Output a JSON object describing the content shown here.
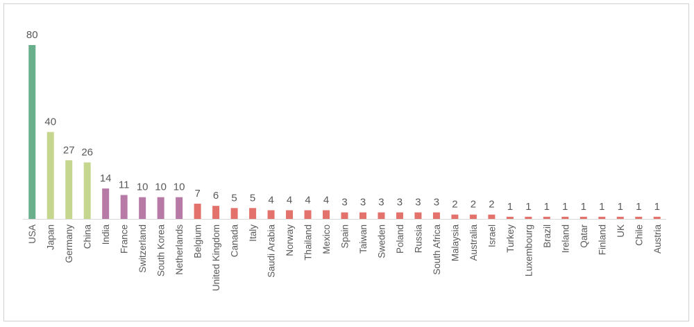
{
  "chart_data": {
    "type": "bar",
    "title": "",
    "xlabel": "",
    "ylabel": "",
    "ylim": [
      0,
      80
    ],
    "grid": false,
    "legend": "none",
    "categories": [
      "USA",
      "Japan",
      "Germany",
      "China",
      "India",
      "France",
      "Switzerland",
      "South Korea",
      "Netherlands",
      "Belgium",
      "United Kingdom",
      "Canada",
      "Italy",
      "Saudi Arabia",
      "Norway",
      "Thailand",
      "Mexico",
      "Spain",
      "Taiwan",
      "Sweden",
      "Poland",
      "Russia",
      "South Africa",
      "Malaysia",
      "Australia",
      "Israel",
      "Turkey",
      "Luxembourg",
      "Brazil",
      "Ireland",
      "Qatar",
      "Finland",
      "UK",
      "Chile",
      "Austria"
    ],
    "values": [
      80,
      40,
      27,
      26,
      14,
      11,
      10,
      10,
      10,
      7,
      6,
      5,
      5,
      4,
      4,
      4,
      4,
      3,
      3,
      3,
      3,
      3,
      3,
      2,
      2,
      2,
      1,
      1,
      1,
      1,
      1,
      1,
      1,
      1,
      1
    ],
    "data_labels": [
      "80",
      "40",
      "27",
      "26",
      "14",
      "11",
      "10",
      "10",
      "10",
      "7",
      "6",
      "5",
      "5",
      "4",
      "4",
      "4",
      "4",
      "3",
      "3",
      "3",
      "3",
      "3",
      "3",
      "2",
      "2",
      "2",
      "1",
      "1",
      "1",
      "1",
      "1",
      "1",
      "1",
      "1",
      "1"
    ],
    "colors": [
      "#6aaf8c",
      "#c5d68f",
      "#c5d68f",
      "#c5d68f",
      "#b77aa6",
      "#b77aa6",
      "#b77aa6",
      "#b77aa6",
      "#b77aa6",
      "#e2726b",
      "#e2726b",
      "#e2726b",
      "#e2726b",
      "#e2726b",
      "#e2726b",
      "#e2726b",
      "#e2726b",
      "#e2726b",
      "#e2726b",
      "#e2726b",
      "#e2726b",
      "#e2726b",
      "#e2726b",
      "#e2726b",
      "#e2726b",
      "#e2726b",
      "#e2726b",
      "#e2726b",
      "#e2726b",
      "#e2726b",
      "#e2726b",
      "#e2726b",
      "#e2726b",
      "#e2726b",
      "#e2726b"
    ],
    "axis_color": "#d9d9d9"
  }
}
